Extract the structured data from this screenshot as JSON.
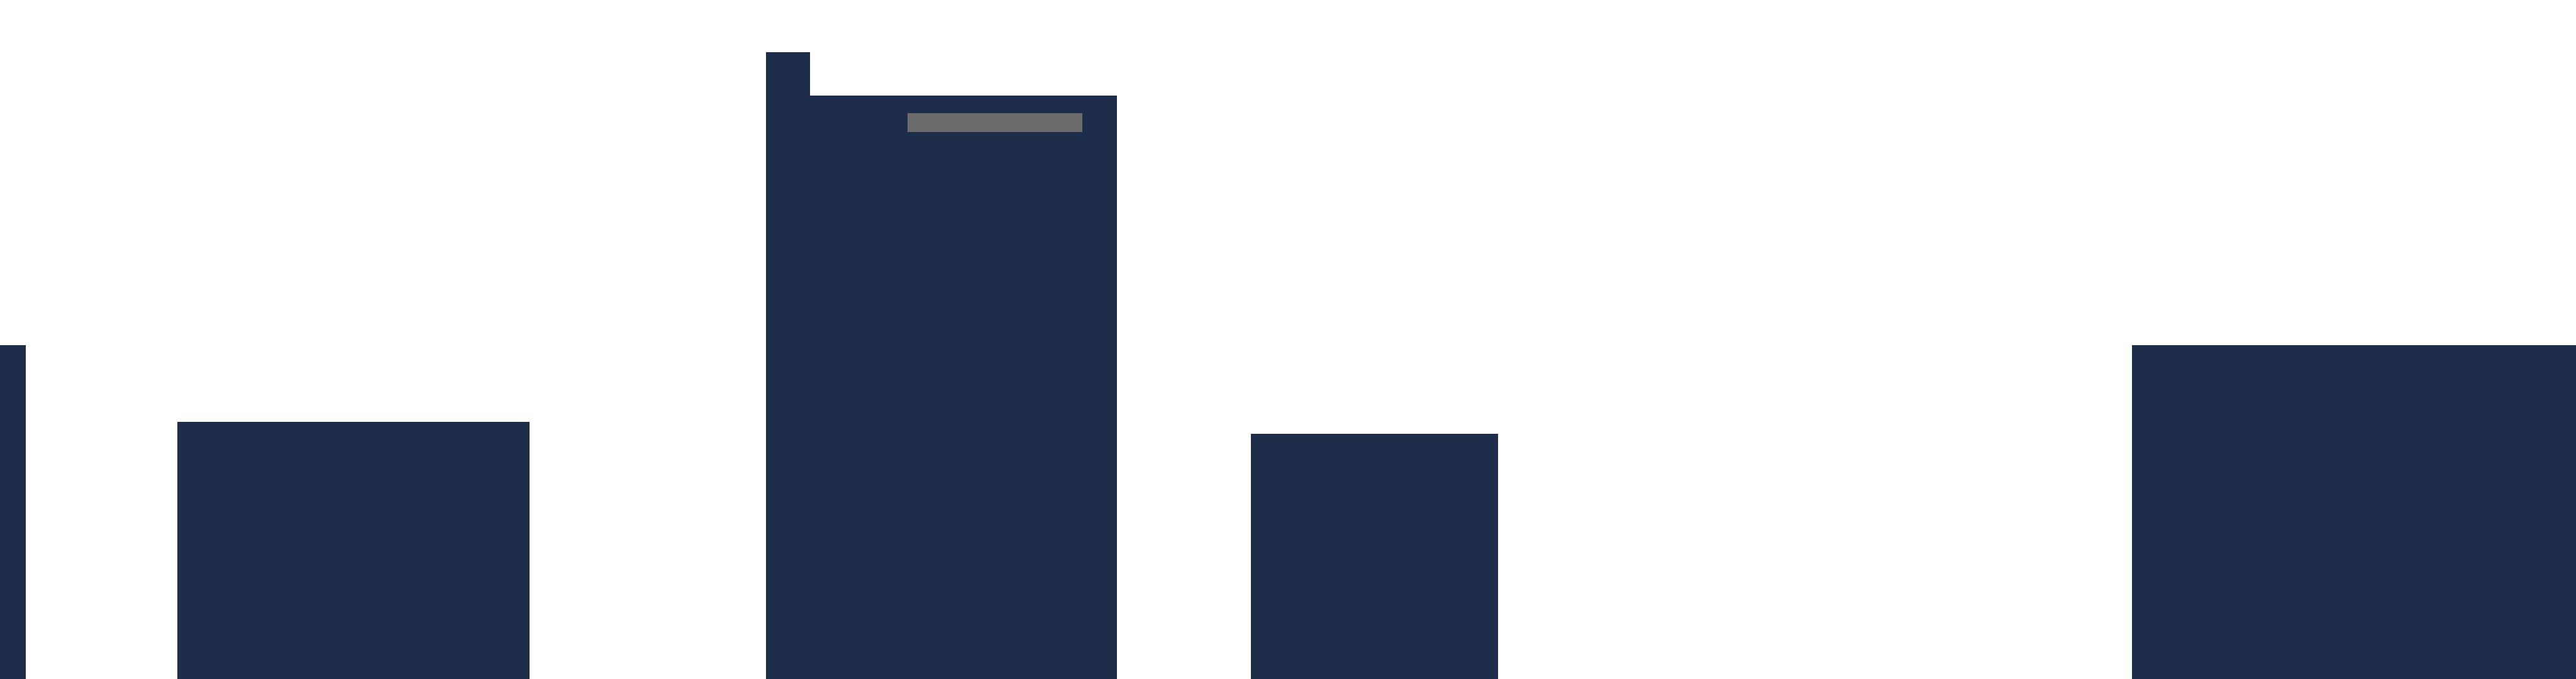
{
  "colors": {
    "background": "#ffffff",
    "block_fill": "#1e2d4a",
    "accent_bar": "#6b6b6b"
  },
  "scene": {
    "description_visible_text": ""
  }
}
